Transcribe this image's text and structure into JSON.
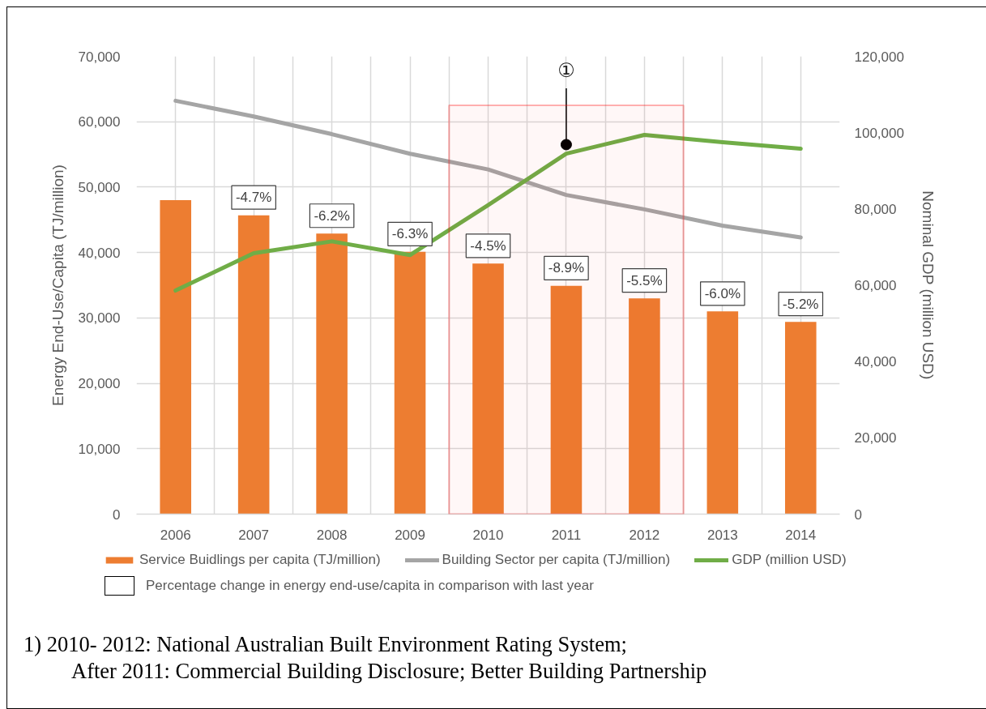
{
  "chart_data": {
    "type": "bar",
    "categories": [
      "2006",
      "2007",
      "2008",
      "2009",
      "2010",
      "2011",
      "2012",
      "2013",
      "2014"
    ],
    "series": [
      {
        "name": "Service Buidlings per capita (TJ/million)",
        "color": "#ed7d31",
        "values": [
          48000,
          45700,
          42900,
          40100,
          38300,
          34900,
          33000,
          31000,
          29400
        ]
      },
      {
        "name": "Building Sector per capita (TJ/million)",
        "type": "line",
        "color": "#a5a5a5",
        "values": [
          63200,
          60800,
          58100,
          55100,
          52700,
          48800,
          46600,
          44100,
          42300
        ]
      },
      {
        "name": "GDP (million USD)",
        "type": "line",
        "color": "#70ad47",
        "axis": "y2",
        "values": [
          58600,
          68400,
          71500,
          67900,
          81000,
          94500,
          99400,
          97500,
          95800
        ]
      }
    ],
    "ylabel": "Energy End-Use/Capita (TJ/million)",
    "y2label": "Nominal GDP (million USD)",
    "ylim": [
      0,
      70000
    ],
    "yticks": [
      0,
      {
        "value": 10000,
        "label": "10,000"
      },
      {
        "value": 20000,
        "label": "20,000"
      },
      {
        "value": 30000,
        "label": "30,000"
      },
      {
        "value": 40000,
        "label": "40,000"
      },
      {
        "value": 50000,
        "label": "50,000"
      },
      {
        "value": 60000,
        "label": "60,000"
      },
      {
        "value": 70000,
        "label": "70,000"
      }
    ],
    "y2lim": [
      0,
      120000
    ],
    "y2ticks": [
      0,
      {
        "value": 20000,
        "label": "20,000"
      },
      {
        "value": 40000,
        "label": "40,000"
      },
      {
        "value": 60000,
        "label": "60,000"
      },
      {
        "value": 80000,
        "label": "80,000"
      },
      {
        "value": 100000,
        "label": "100,000"
      },
      {
        "value": 120000,
        "label": "120,000"
      }
    ],
    "grid": true,
    "legend": "bottom",
    "bands": [
      {
        "axis": "x",
        "from": "2010",
        "to": "2012",
        "color": "#ff0000"
      }
    ],
    "annotations": [
      {
        "text": "①",
        "x": "2011",
        "y": 56500
      },
      {
        "text": "-4.7%",
        "x": "2007",
        "y": 45700
      },
      {
        "text": "-6.2%",
        "x": "2008",
        "y": 42900
      },
      {
        "text": "-6.3%",
        "x": "2009",
        "y": 40100
      },
      {
        "text": "-4.5%",
        "x": "2010",
        "y": 38300
      },
      {
        "text": "-8.9%",
        "x": "2011",
        "y": 34900
      },
      {
        "text": "-5.5%",
        "x": "2012",
        "y": 33000
      },
      {
        "text": "-6.0%",
        "x": "2013",
        "y": 31000
      },
      {
        "text": "-5.2%",
        "x": "2014",
        "y": 29400
      },
      "Percentage change in energy end-use/capita in comparison with last year",
      "1) 2010- 2012: National Australian Built Environment Rating System;\nAfter 2011: Commercial Building Disclosure; Better Building Partnership"
    ]
  }
}
